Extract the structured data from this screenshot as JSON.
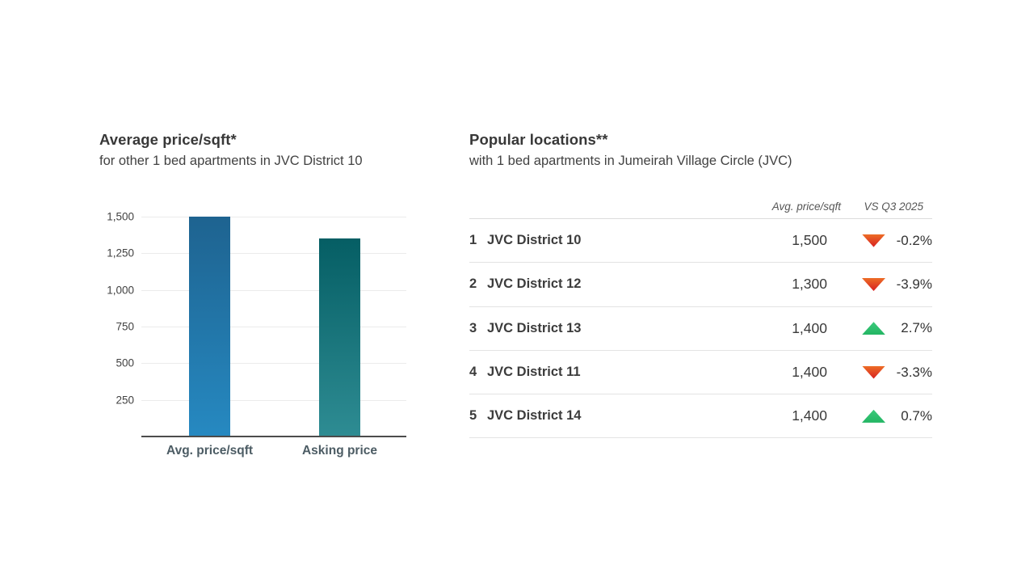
{
  "chart_data": {
    "type": "bar",
    "title": "Average price/sqft*",
    "subtitle": "for other 1 bed apartments in JVC District 10",
    "categories": [
      "Avg. price/sqft",
      "Asking price"
    ],
    "values": [
      1500,
      1350
    ],
    "xlabel": "",
    "ylabel": "",
    "ylim": [
      0,
      1500
    ],
    "yticks": [
      1500,
      1250,
      1000,
      750,
      500,
      250
    ],
    "ytick_labels": [
      "1,500",
      "1,250",
      "1,000",
      "750",
      "500",
      "250"
    ],
    "grid": true,
    "legend": false,
    "bar_gradients": [
      {
        "top": "#1e6390",
        "bottom": "#2689c1"
      },
      {
        "top": "#055e64",
        "bottom": "#2e8c93"
      }
    ]
  },
  "table": {
    "title": "Popular locations**",
    "subtitle": "with 1 bed apartments in Jumeirah Village Circle (JVC)",
    "col_headers": {
      "price": "Avg. price/sqft",
      "change": "VS Q3 2025"
    },
    "rows": [
      {
        "rank": "1",
        "name": "JVC District 10",
        "price": "1,500",
        "trend": "down",
        "change": "-0.2%"
      },
      {
        "rank": "2",
        "name": "JVC District 12",
        "price": "1,300",
        "trend": "down",
        "change": "-3.9%"
      },
      {
        "rank": "3",
        "name": "JVC District 13",
        "price": "1,400",
        "trend": "up",
        "change": "2.7%"
      },
      {
        "rank": "4",
        "name": "JVC District 11",
        "price": "1,400",
        "trend": "down",
        "change": "-3.3%"
      },
      {
        "rank": "5",
        "name": "JVC District 14",
        "price": "1,400",
        "trend": "up",
        "change": "0.7%"
      }
    ]
  },
  "colors": {
    "trend_up_top": "#3bca7b",
    "trend_up_bottom": "#23b563",
    "trend_down_top": "#ed6d26",
    "trend_down_bottom": "#d71f21",
    "bar_blue_top": "#1e6390",
    "bar_blue_bottom": "#2689c1",
    "bar_teal_top": "#055e64",
    "bar_teal_bottom": "#2e8c93",
    "gridline": "#ebebeb",
    "axis": "#4c4c4c"
  }
}
